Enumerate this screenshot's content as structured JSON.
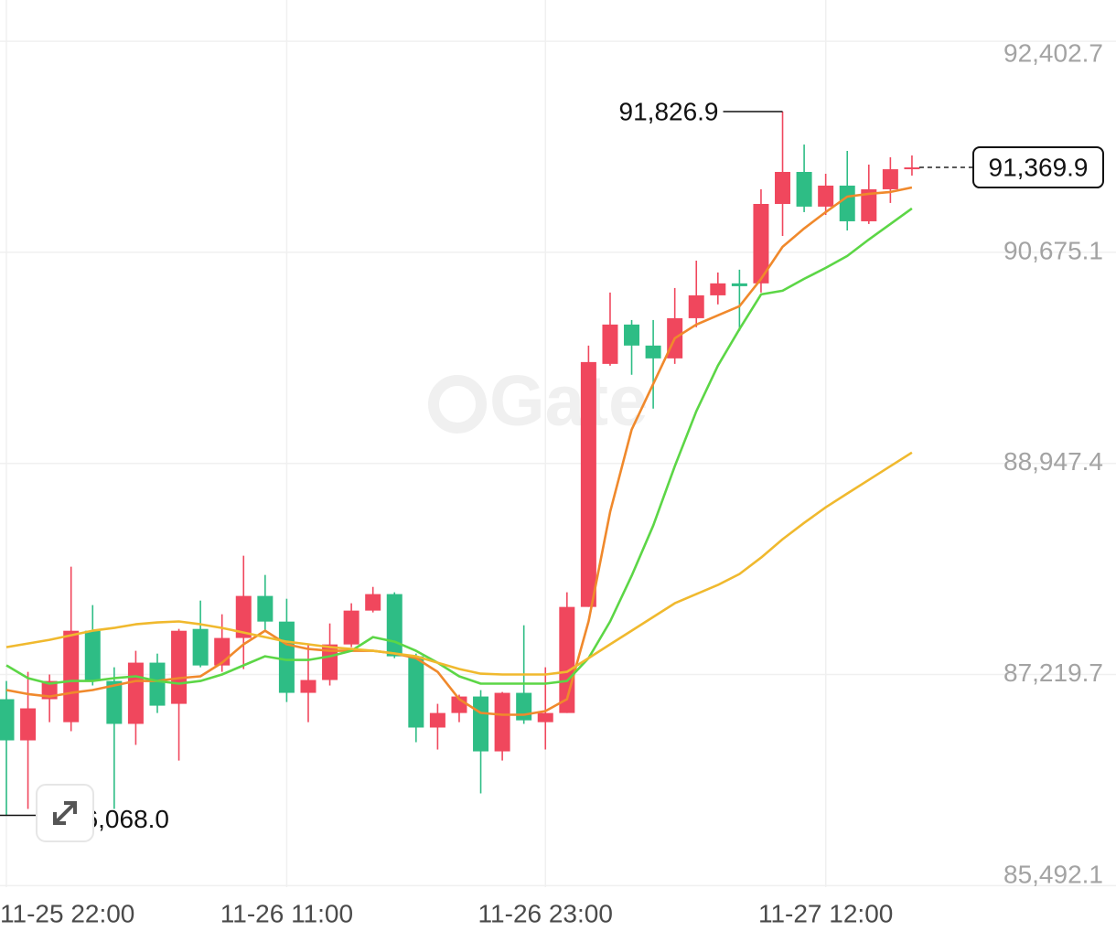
{
  "chart_data": {
    "type": "candlestick",
    "watermark": "Gate",
    "up_color": "#f0475d",
    "down_color": "#2ebd85",
    "categories": [
      "11-25 22:00",
      null,
      null,
      null,
      null,
      null,
      null,
      null,
      null,
      null,
      null,
      null,
      null,
      "11-26 11:00",
      null,
      null,
      null,
      null,
      null,
      null,
      null,
      null,
      null,
      null,
      null,
      "11-26 23:00",
      null,
      null,
      null,
      null,
      null,
      null,
      null,
      null,
      null,
      null,
      null,
      null,
      "11-27 12:00",
      null,
      null,
      null,
      null
    ],
    "open": [
      87018,
      86681,
      87018,
      86830,
      87578,
      87167,
      86816,
      87317,
      86980,
      87593,
      87294,
      87519,
      87863,
      87653,
      87070,
      87175,
      87466,
      87743,
      87878,
      87369,
      86786,
      86905,
      87040,
      86591,
      87070,
      86830,
      86905,
      87773,
      89762,
      90084,
      89912,
      89807,
      90136,
      90323,
      90421,
      90421,
      91071,
      91333,
      91049,
      91221,
      90929,
      91191,
      91355
    ],
    "high": [
      87167,
      87242,
      87220,
      88102,
      87788,
      87279,
      87414,
      87391,
      87593,
      87825,
      87713,
      88192,
      88035,
      87840,
      87466,
      87638,
      87803,
      87937,
      87893,
      87391,
      86980,
      87055,
      87092,
      87077,
      87623,
      87279,
      87893,
      89912,
      90346,
      90121,
      90121,
      90383,
      90607,
      90510,
      90533,
      91191,
      91826.9,
      91557,
      91318,
      91505,
      91393,
      91453,
      91468
    ],
    "low": [
      86068,
      86120,
      86830,
      86756,
      87130,
      86120,
      86644,
      86905,
      86516,
      87279,
      87242,
      87264,
      87578,
      86995,
      86830,
      87130,
      87444,
      87728,
      87354,
      86666,
      86606,
      86830,
      86247,
      86516,
      86816,
      86606,
      86905,
      87773,
      89747,
      89673,
      89396,
      89762,
      90062,
      90249,
      90032,
      90346,
      90809,
      91004,
      90981,
      90854,
      90907,
      91079,
      91303
    ],
    "close": [
      86681,
      86943,
      87167,
      87578,
      87167,
      86816,
      87317,
      86965,
      87578,
      87294,
      87519,
      87863,
      87653,
      87070,
      87175,
      87466,
      87743,
      87878,
      87369,
      86786,
      86905,
      87040,
      86591,
      87070,
      86845,
      86905,
      87773,
      89777,
      90084,
      89912,
      89807,
      90136,
      90323,
      90421,
      90398,
      91071,
      91333,
      91049,
      91221,
      90929,
      91191,
      91355,
      91369.9
    ],
    "moving_averages": [
      {
        "color": "#f0892c",
        "values": [
          87093,
          87060,
          87040,
          87070,
          87093,
          87130,
          87167,
          87167,
          87190,
          87205,
          87317,
          87467,
          87579,
          87467,
          87429,
          87414,
          87414,
          87414,
          87392,
          87354,
          87242,
          87018,
          86906,
          86891,
          86891,
          86921,
          87018,
          87654,
          88551,
          89224,
          89598,
          89972,
          90084,
          90159,
          90234,
          90458,
          90720,
          90870,
          91004,
          91131,
          91154,
          91169,
          91206
        ]
      },
      {
        "color": "#5cd646",
        "values": [
          87295,
          87190,
          87145,
          87167,
          87167,
          87190,
          87205,
          87167,
          87145,
          87167,
          87220,
          87295,
          87369,
          87339,
          87339,
          87369,
          87414,
          87526,
          87489,
          87414,
          87317,
          87205,
          87145,
          87145,
          87145,
          87145,
          87167,
          87354,
          87654,
          88028,
          88439,
          88925,
          89374,
          89748,
          90047,
          90331,
          90361,
          90458,
          90548,
          90645,
          90780,
          90907,
          91034
        ]
      },
      {
        "color": "#f0b92e",
        "values": [
          87444,
          87474,
          87504,
          87541,
          87579,
          87601,
          87631,
          87646,
          87654,
          87631,
          87601,
          87564,
          87526,
          87489,
          87467,
          87444,
          87429,
          87414,
          87392,
          87369,
          87317,
          87265,
          87227,
          87220,
          87220,
          87220,
          87242,
          87354,
          87467,
          87579,
          87691,
          87803,
          87878,
          87953,
          88043,
          88177,
          88327,
          88461,
          88588,
          88701,
          88813,
          88925,
          89037
        ]
      }
    ],
    "ylim": [
      85480,
      92740
    ],
    "yticks": [
      {
        "value": 92402.7,
        "label": "92,402.7"
      },
      {
        "value": 90675.1,
        "label": "90,675.1"
      },
      {
        "value": 88947.4,
        "label": "88,947.4"
      },
      {
        "value": 87219.7,
        "label": "87,219.7"
      },
      {
        "value": 85492.1,
        "label": "85,492.1"
      }
    ],
    "grid": true,
    "max_label": {
      "value": 91826.9,
      "label": "91,826.9"
    },
    "min_label": {
      "value": 86068.0,
      "label": "86,068.0"
    },
    "last_price": {
      "value": 91369.9,
      "label": "91,369.9"
    }
  }
}
